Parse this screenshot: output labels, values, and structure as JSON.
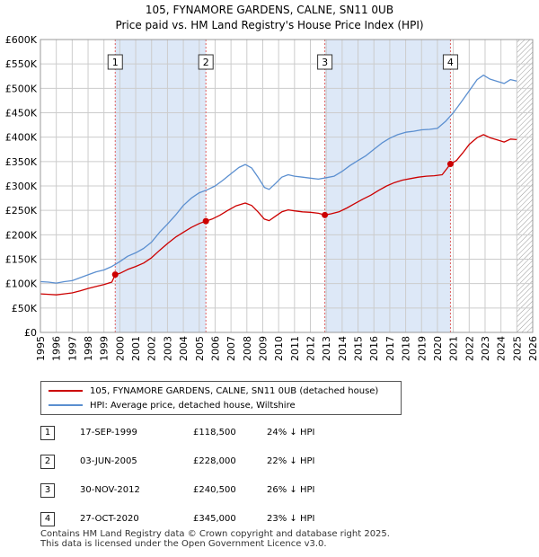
{
  "title_line1": "105, FYNAMORE GARDENS, CALNE, SN11 0UB",
  "title_line2": "Price paid vs. HM Land Registry's House Price Index (HPI)",
  "colors": {
    "price_paid": "#cc0000",
    "hpi": "#5b8fd0",
    "shade": "#dde8f7",
    "marker_line": "#e06060",
    "grid": "#cccccc"
  },
  "legend": {
    "price_paid_label": "105, FYNAMORE GARDENS, CALNE, SN11 0UB (detached house)",
    "hpi_label": "HPI: Average price, detached house, Wiltshire"
  },
  "sales": [
    {
      "num": "1",
      "date": "17-SEP-1999",
      "price": "£118,500",
      "delta": "24% ↓ HPI",
      "year": 1999.71,
      "value": 118500
    },
    {
      "num": "2",
      "date": "03-JUN-2005",
      "price": "£228,000",
      "delta": "22% ↓ HPI",
      "year": 2005.42,
      "value": 228000
    },
    {
      "num": "3",
      "date": "30-NOV-2012",
      "price": "£240,500",
      "delta": "26% ↓ HPI",
      "year": 2012.91,
      "value": 240500
    },
    {
      "num": "4",
      "date": "27-OCT-2020",
      "price": "£345,000",
      "delta": "23% ↓ HPI",
      "year": 2020.82,
      "value": 345000
    }
  ],
  "footer": {
    "line1": "Contains HM Land Registry data © Crown copyright and database right 2025.",
    "line2": "This data is licensed under the Open Government Licence v3.0."
  },
  "chart_data": {
    "type": "line",
    "title": "105, FYNAMORE GARDENS, CALNE, SN11 0UB — Price paid vs. HM Land Registry's House Price Index (HPI)",
    "xlim": [
      1995,
      2026
    ],
    "ylim": [
      0,
      600000
    ],
    "x_ticks": [
      1995,
      1996,
      1997,
      1998,
      1999,
      2000,
      2001,
      2002,
      2003,
      2004,
      2005,
      2006,
      2007,
      2008,
      2009,
      2010,
      2011,
      2012,
      2013,
      2014,
      2015,
      2016,
      2017,
      2018,
      2019,
      2020,
      2021,
      2022,
      2023,
      2024,
      2025,
      2026
    ],
    "y_ticks": [
      {
        "value": 0,
        "label": "£0"
      },
      {
        "value": 50000,
        "label": "£50K"
      },
      {
        "value": 100000,
        "label": "£100K"
      },
      {
        "value": 150000,
        "label": "£150K"
      },
      {
        "value": 200000,
        "label": "£200K"
      },
      {
        "value": 250000,
        "label": "£250K"
      },
      {
        "value": 300000,
        "label": "£300K"
      },
      {
        "value": 350000,
        "label": "£350K"
      },
      {
        "value": 400000,
        "label": "£400K"
      },
      {
        "value": 450000,
        "label": "£450K"
      },
      {
        "value": 500000,
        "label": "£500K"
      },
      {
        "value": 550000,
        "label": "£550K"
      },
      {
        "value": 600000,
        "label": "£600K"
      }
    ],
    "grid": true,
    "shaded_ranges": [
      [
        1999.71,
        2005.42
      ],
      [
        2012.91,
        2020.82
      ]
    ],
    "hatched_from": 2025.0,
    "series": [
      {
        "name": "HPI: Average price, detached house, Wiltshire",
        "color": "#5b8fd0",
        "points": [
          [
            1995.0,
            104000
          ],
          [
            1995.5,
            103000
          ],
          [
            1996.0,
            101000
          ],
          [
            1996.5,
            104000
          ],
          [
            1997.0,
            106000
          ],
          [
            1997.5,
            112000
          ],
          [
            1998.0,
            118000
          ],
          [
            1998.5,
            124000
          ],
          [
            1999.0,
            128000
          ],
          [
            1999.5,
            135000
          ],
          [
            2000.0,
            145000
          ],
          [
            2000.5,
            156000
          ],
          [
            2001.0,
            163000
          ],
          [
            2001.5,
            172000
          ],
          [
            2002.0,
            185000
          ],
          [
            2002.5,
            205000
          ],
          [
            2003.0,
            222000
          ],
          [
            2003.5,
            240000
          ],
          [
            2004.0,
            260000
          ],
          [
            2004.5,
            275000
          ],
          [
            2005.0,
            286000
          ],
          [
            2005.5,
            292000
          ],
          [
            2006.0,
            300000
          ],
          [
            2006.5,
            312000
          ],
          [
            2007.0,
            325000
          ],
          [
            2007.5,
            338000
          ],
          [
            2007.9,
            344000
          ],
          [
            2008.3,
            337000
          ],
          [
            2008.7,
            318000
          ],
          [
            2009.1,
            297000
          ],
          [
            2009.4,
            293000
          ],
          [
            2009.8,
            305000
          ],
          [
            2010.2,
            318000
          ],
          [
            2010.6,
            323000
          ],
          [
            2011.0,
            320000
          ],
          [
            2011.5,
            318000
          ],
          [
            2012.0,
            316000
          ],
          [
            2012.5,
            314000
          ],
          [
            2013.0,
            317000
          ],
          [
            2013.5,
            320000
          ],
          [
            2014.0,
            330000
          ],
          [
            2014.5,
            342000
          ],
          [
            2015.0,
            352000
          ],
          [
            2015.5,
            362000
          ],
          [
            2016.0,
            375000
          ],
          [
            2016.5,
            388000
          ],
          [
            2017.0,
            398000
          ],
          [
            2017.5,
            405000
          ],
          [
            2018.0,
            410000
          ],
          [
            2018.5,
            412000
          ],
          [
            2019.0,
            415000
          ],
          [
            2019.5,
            416000
          ],
          [
            2020.0,
            418000
          ],
          [
            2020.5,
            432000
          ],
          [
            2021.0,
            450000
          ],
          [
            2021.5,
            472000
          ],
          [
            2022.0,
            495000
          ],
          [
            2022.5,
            518000
          ],
          [
            2022.9,
            527000
          ],
          [
            2023.3,
            519000
          ],
          [
            2023.8,
            514000
          ],
          [
            2024.2,
            510000
          ],
          [
            2024.6,
            518000
          ],
          [
            2025.0,
            515000
          ]
        ]
      },
      {
        "name": "105, FYNAMORE GARDENS, CALNE, SN11 0UB (detached house)",
        "color": "#cc0000",
        "points": [
          [
            1995.0,
            79000
          ],
          [
            1995.5,
            78000
          ],
          [
            1996.0,
            77000
          ],
          [
            1996.5,
            79000
          ],
          [
            1997.0,
            81000
          ],
          [
            1997.5,
            85000
          ],
          [
            1998.0,
            90000
          ],
          [
            1998.5,
            94000
          ],
          [
            1999.0,
            98000
          ],
          [
            1999.5,
            103000
          ],
          [
            1999.71,
            118500
          ],
          [
            2000.0,
            121000
          ],
          [
            2000.5,
            129000
          ],
          [
            2001.0,
            135000
          ],
          [
            2001.5,
            142000
          ],
          [
            2002.0,
            153000
          ],
          [
            2002.5,
            168000
          ],
          [
            2003.0,
            182000
          ],
          [
            2003.5,
            195000
          ],
          [
            2004.0,
            205000
          ],
          [
            2004.5,
            215000
          ],
          [
            2005.0,
            223000
          ],
          [
            2005.42,
            228000
          ],
          [
            2005.8,
            232000
          ],
          [
            2006.3,
            240000
          ],
          [
            2006.8,
            250000
          ],
          [
            2007.3,
            259000
          ],
          [
            2007.9,
            265000
          ],
          [
            2008.3,
            260000
          ],
          [
            2008.7,
            247000
          ],
          [
            2009.1,
            232000
          ],
          [
            2009.4,
            229000
          ],
          [
            2009.8,
            238000
          ],
          [
            2010.2,
            247000
          ],
          [
            2010.6,
            251000
          ],
          [
            2011.0,
            249000
          ],
          [
            2011.5,
            247000
          ],
          [
            2012.0,
            246000
          ],
          [
            2012.5,
            244000
          ],
          [
            2012.91,
            240500
          ],
          [
            2013.3,
            243000
          ],
          [
            2013.8,
            247000
          ],
          [
            2014.3,
            255000
          ],
          [
            2014.8,
            264000
          ],
          [
            2015.3,
            273000
          ],
          [
            2015.8,
            281000
          ],
          [
            2016.3,
            291000
          ],
          [
            2016.8,
            300000
          ],
          [
            2017.3,
            307000
          ],
          [
            2017.8,
            312000
          ],
          [
            2018.3,
            315000
          ],
          [
            2018.8,
            318000
          ],
          [
            2019.3,
            320000
          ],
          [
            2019.8,
            321000
          ],
          [
            2020.3,
            323000
          ],
          [
            2020.82,
            345000
          ],
          [
            2021.2,
            352000
          ],
          [
            2021.6,
            368000
          ],
          [
            2022.0,
            385000
          ],
          [
            2022.5,
            399000
          ],
          [
            2022.9,
            405000
          ],
          [
            2023.3,
            399000
          ],
          [
            2023.8,
            394000
          ],
          [
            2024.2,
            390000
          ],
          [
            2024.6,
            396000
          ],
          [
            2025.0,
            395000
          ]
        ]
      }
    ]
  }
}
